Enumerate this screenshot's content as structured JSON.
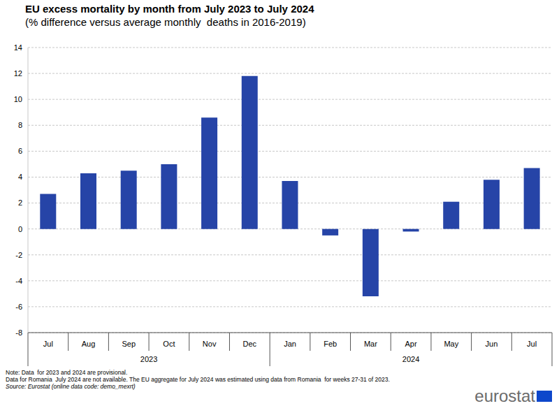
{
  "chart_data": {
    "type": "bar",
    "title": "EU excess mortality by month from July 2023 to July 2024",
    "subtitle": "(% difference versus average monthly  deaths in 2016-2019)",
    "categories": [
      "Jul",
      "Aug",
      "Sep",
      "Oct",
      "Nov",
      "Dec",
      "Jan",
      "Feb",
      "Mar",
      "Apr",
      "May",
      "Jun",
      "Jul"
    ],
    "years": [
      "2023",
      "2023",
      "2023",
      "2023",
      "2023",
      "2023",
      "2024",
      "2024",
      "2024",
      "2024",
      "2024",
      "2024",
      "2024"
    ],
    "values": [
      2.7,
      4.3,
      4.5,
      5.0,
      8.6,
      11.8,
      3.7,
      -0.5,
      -5.2,
      -0.2,
      2.1,
      3.8,
      4.7
    ],
    "color": "#2644a7",
    "ylim": [
      -8,
      14
    ],
    "yticks": [
      -8,
      -6,
      -4,
      -2,
      0,
      2,
      4,
      6,
      8,
      10,
      12,
      14
    ],
    "grid": true,
    "notes": [
      "Note: Data  for 2023 and 2024 are provisional.",
      "Data for Romania  July 2024 are not available. The EU aggregate for July 2024 was estimated using data from Romania  for weeks 27-31 of 2023.",
      "Source: Eurostat (online data code: demo_mexrt)"
    ],
    "logo": "eurostat"
  }
}
